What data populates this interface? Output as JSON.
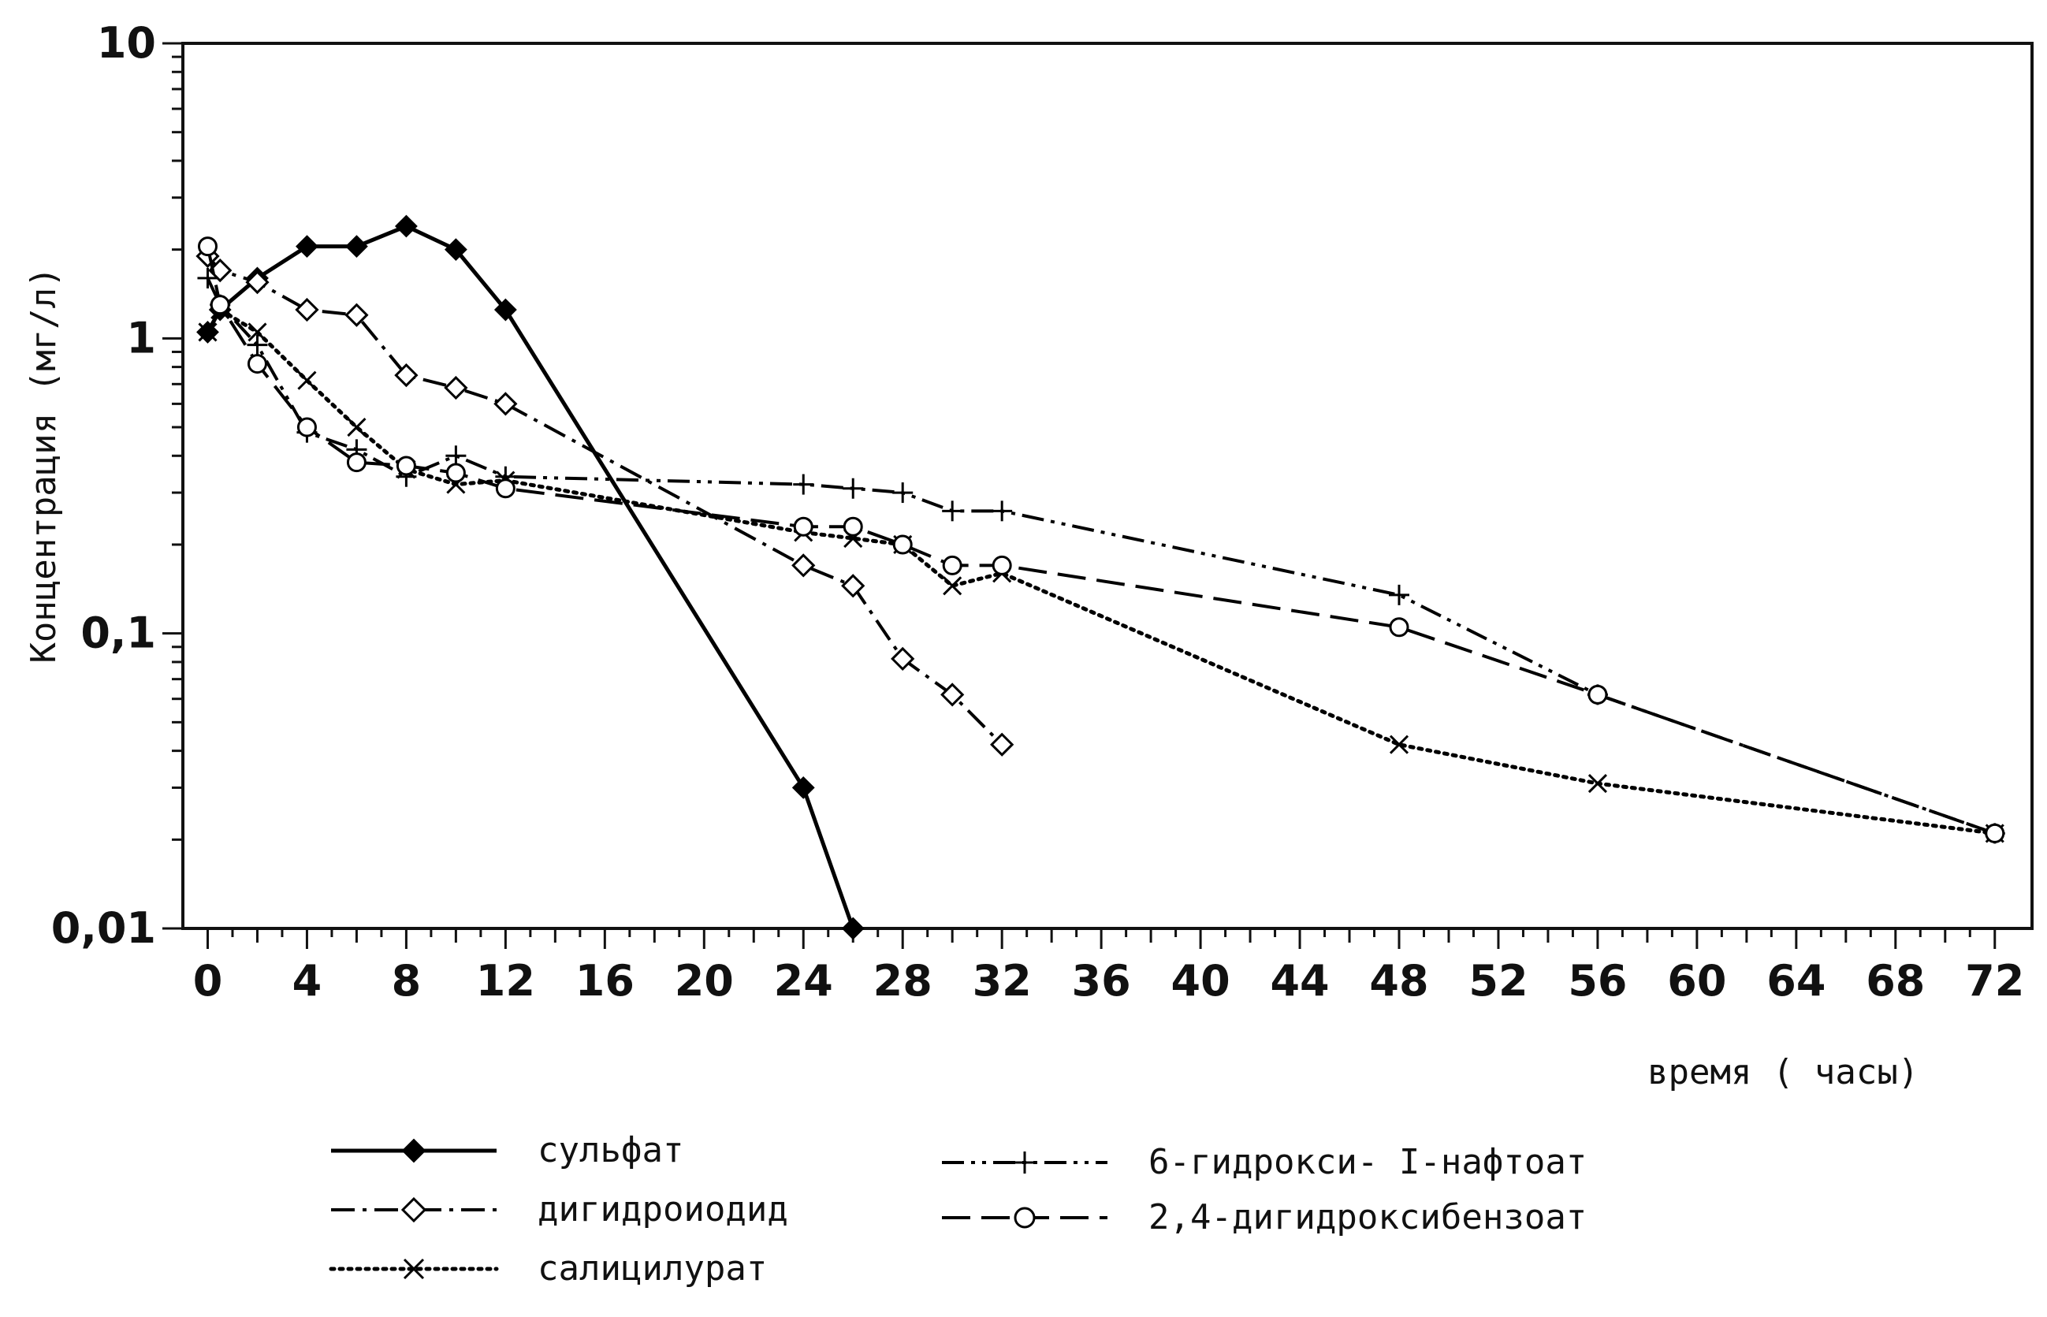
{
  "chart_data": {
    "type": "line",
    "title": "",
    "xlabel": "время (  часы)",
    "ylabel": "Концентрация  (мг/л)",
    "yscale": "log",
    "ylim": [
      0.01,
      10
    ],
    "xlim": [
      -1,
      73.5
    ],
    "grid": false,
    "legend_position": "bottom",
    "x_ticks": [
      0,
      4,
      8,
      12,
      16,
      20,
      24,
      28,
      32,
      36,
      40,
      44,
      48,
      52,
      56,
      60,
      64,
      68,
      72
    ],
    "x_tick_labels": [
      "0",
      "4",
      "8",
      "12",
      "16",
      "20",
      "24",
      "28",
      "32",
      "36",
      "40",
      "44",
      "48",
      "52",
      "56",
      "60",
      "64",
      "68",
      "72"
    ],
    "y_ticks": [
      0.01,
      0.1,
      1,
      10
    ],
    "y_tick_labels": [
      "0,01",
      "0,1",
      "1",
      "10"
    ],
    "series": [
      {
        "name": "сульфат",
        "marker": "filled-diamond",
        "linestyle": "solid",
        "color": "#000000",
        "x": [
          0,
          0.5,
          2,
          4,
          6,
          8,
          10,
          12,
          24,
          26
        ],
        "y": [
          1.05,
          1.25,
          1.6,
          2.05,
          2.05,
          2.4,
          2.0,
          1.25,
          0.03,
          0.01
        ]
      },
      {
        "name": "дигидроиодид",
        "marker": "open-diamond",
        "linestyle": "dash-dot",
        "color": "#000000",
        "x": [
          0,
          0.5,
          2,
          4,
          6,
          8,
          10,
          12,
          24,
          26,
          28,
          30,
          32
        ],
        "y": [
          1.9,
          1.7,
          1.55,
          1.25,
          1.2,
          0.75,
          0.68,
          0.6,
          0.17,
          0.145,
          0.082,
          0.062,
          0.042
        ]
      },
      {
        "name": "салицилурат",
        "marker": "x",
        "linestyle": "dotted",
        "color": "#000000",
        "x": [
          0,
          0.5,
          2,
          4,
          6,
          8,
          10,
          12,
          24,
          26,
          28,
          30,
          32,
          48,
          56,
          72
        ],
        "y": [
          1.05,
          1.25,
          1.05,
          0.72,
          0.5,
          0.36,
          0.32,
          0.33,
          0.22,
          0.21,
          0.2,
          0.145,
          0.16,
          0.042,
          0.031,
          0.021
        ]
      },
      {
        "name": "6-гидрокси- I-нафтоат",
        "marker": "plus",
        "linestyle": "dash-dot-dot",
        "color": "#000000",
        "x": [
          0,
          0.5,
          2,
          4,
          6,
          8,
          10,
          12,
          24,
          26,
          28,
          30,
          32,
          48,
          56,
          72
        ],
        "y": [
          1.6,
          1.3,
          0.95,
          0.48,
          0.42,
          0.34,
          0.4,
          0.34,
          0.32,
          0.31,
          0.3,
          0.26,
          0.26,
          0.135,
          0.062,
          0.021
        ]
      },
      {
        "name": "2,4-дигидроксибензоат",
        "marker": "open-circle",
        "linestyle": "dashed",
        "color": "#000000",
        "x": [
          0,
          0.5,
          2,
          4,
          6,
          8,
          10,
          12,
          24,
          26,
          28,
          30,
          32,
          48,
          56,
          72
        ],
        "y": [
          2.05,
          1.3,
          0.82,
          0.5,
          0.38,
          0.37,
          0.35,
          0.31,
          0.23,
          0.23,
          0.2,
          0.17,
          0.17,
          0.105,
          0.062,
          0.021
        ]
      }
    ]
  }
}
